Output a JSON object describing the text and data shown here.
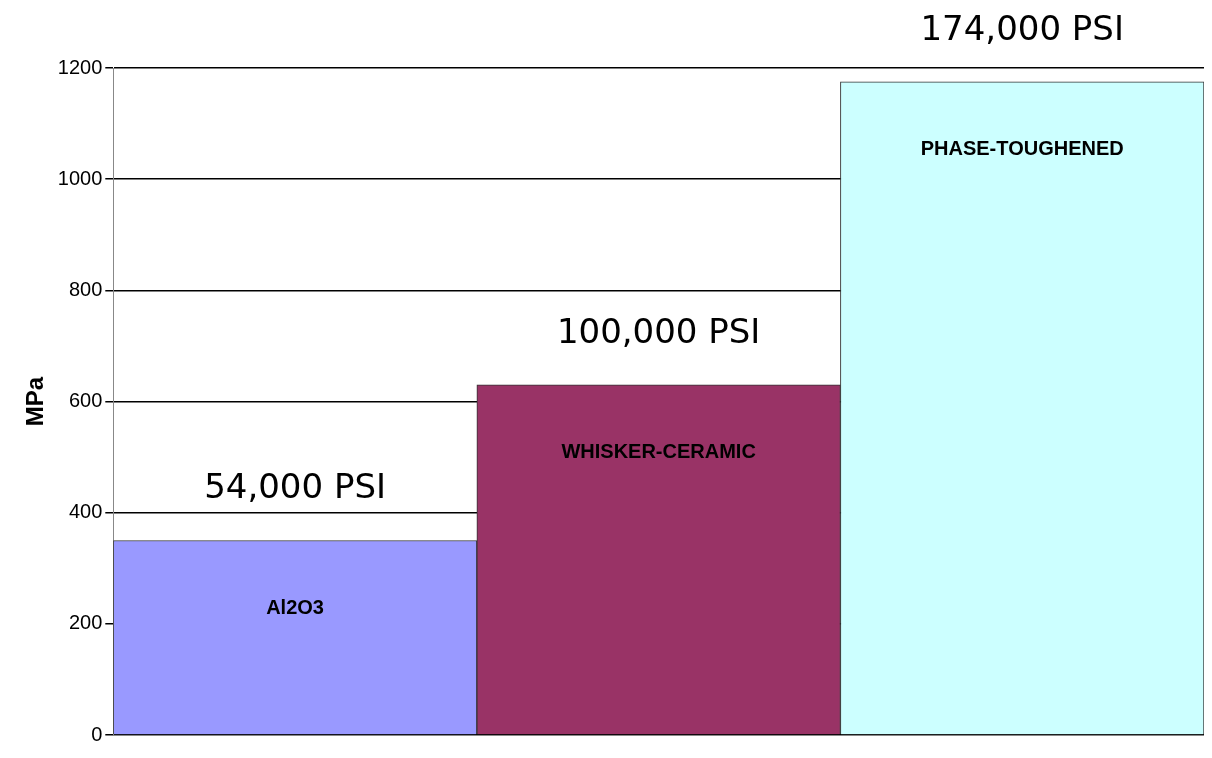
{
  "chart_data": {
    "type": "bar",
    "ylabel": "MPa",
    "categories": [
      "Al2O3",
      "WHISKER-CERAMIC",
      "PHASE-TOUGHENED"
    ],
    "values": [
      350,
      630,
      1175
    ],
    "colors": [
      "#9999ff",
      "#993366",
      "#ccffff"
    ],
    "annotations": [
      {
        "text": "54,000 PSI",
        "x": "Al2O3",
        "y": 350
      },
      {
        "text": "100,000 PSI",
        "x": "WHISKER-CERAMIC",
        "y": 630
      },
      {
        "text": "174,000 PSI",
        "x": "PHASE-TOUGHENED",
        "y": 1175
      }
    ],
    "ylim": [
      0,
      1200
    ],
    "yticks": [
      0,
      200,
      400,
      600,
      800,
      1000,
      1200
    ],
    "grid": "y",
    "legend": false,
    "tick_labels": "y"
  }
}
